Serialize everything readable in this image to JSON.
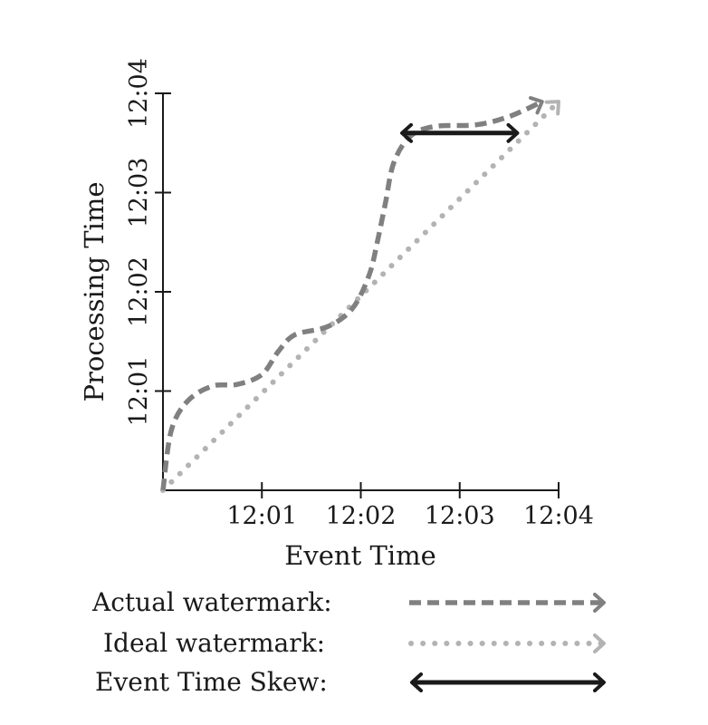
{
  "chart_data": {
    "type": "line",
    "xlabel": "Event Time",
    "ylabel": "Processing Time",
    "x_ticks": [
      "12:01",
      "12:02",
      "12:03",
      "12:04"
    ],
    "y_ticks": [
      "12:01",
      "12:02",
      "12:03",
      "12:04"
    ],
    "xlim": [
      "12:00",
      "12:04"
    ],
    "ylim": [
      "12:00",
      "12:04"
    ],
    "grid": false,
    "legend_position": "bottom",
    "series": [
      {
        "name": "Actual watermark:",
        "style": "dashed",
        "color": "#808080",
        "points": [
          [
            "12:00:00",
            "12:00:00"
          ],
          [
            "12:00:05",
            "12:00:36"
          ],
          [
            "12:00:15",
            "12:00:54"
          ],
          [
            "12:00:30",
            "12:01:03"
          ],
          [
            "12:00:45",
            "12:01:04"
          ],
          [
            "12:01:00",
            "12:01:10"
          ],
          [
            "12:01:10",
            "12:01:24"
          ],
          [
            "12:01:20",
            "12:01:34"
          ],
          [
            "12:01:40",
            "12:01:39"
          ],
          [
            "12:01:55",
            "12:01:50"
          ],
          [
            "12:02:05",
            "12:02:10"
          ],
          [
            "12:02:10",
            "12:02:30"
          ],
          [
            "12:02:15",
            "12:02:54"
          ],
          [
            "12:02:20",
            "12:03:18"
          ],
          [
            "12:02:30",
            "12:03:34"
          ],
          [
            "12:02:45",
            "12:03:40"
          ],
          [
            "12:03:10",
            "12:03:41"
          ],
          [
            "12:03:30",
            "12:03:46"
          ],
          [
            "12:03:50",
            "12:03:55"
          ]
        ]
      },
      {
        "name": "Ideal watermark:",
        "style": "dotted",
        "color": "#b3b3b3",
        "points": [
          [
            "12:00:00",
            "12:00:00"
          ],
          [
            "12:04:00",
            "12:03:55"
          ]
        ]
      },
      {
        "name": "Event Time Skew:",
        "style": "solid",
        "color": "#1a1a1a",
        "points": [
          [
            "12:02:25",
            "12:03:36"
          ],
          [
            "12:03:35",
            "12:03:36"
          ]
        ]
      }
    ]
  }
}
